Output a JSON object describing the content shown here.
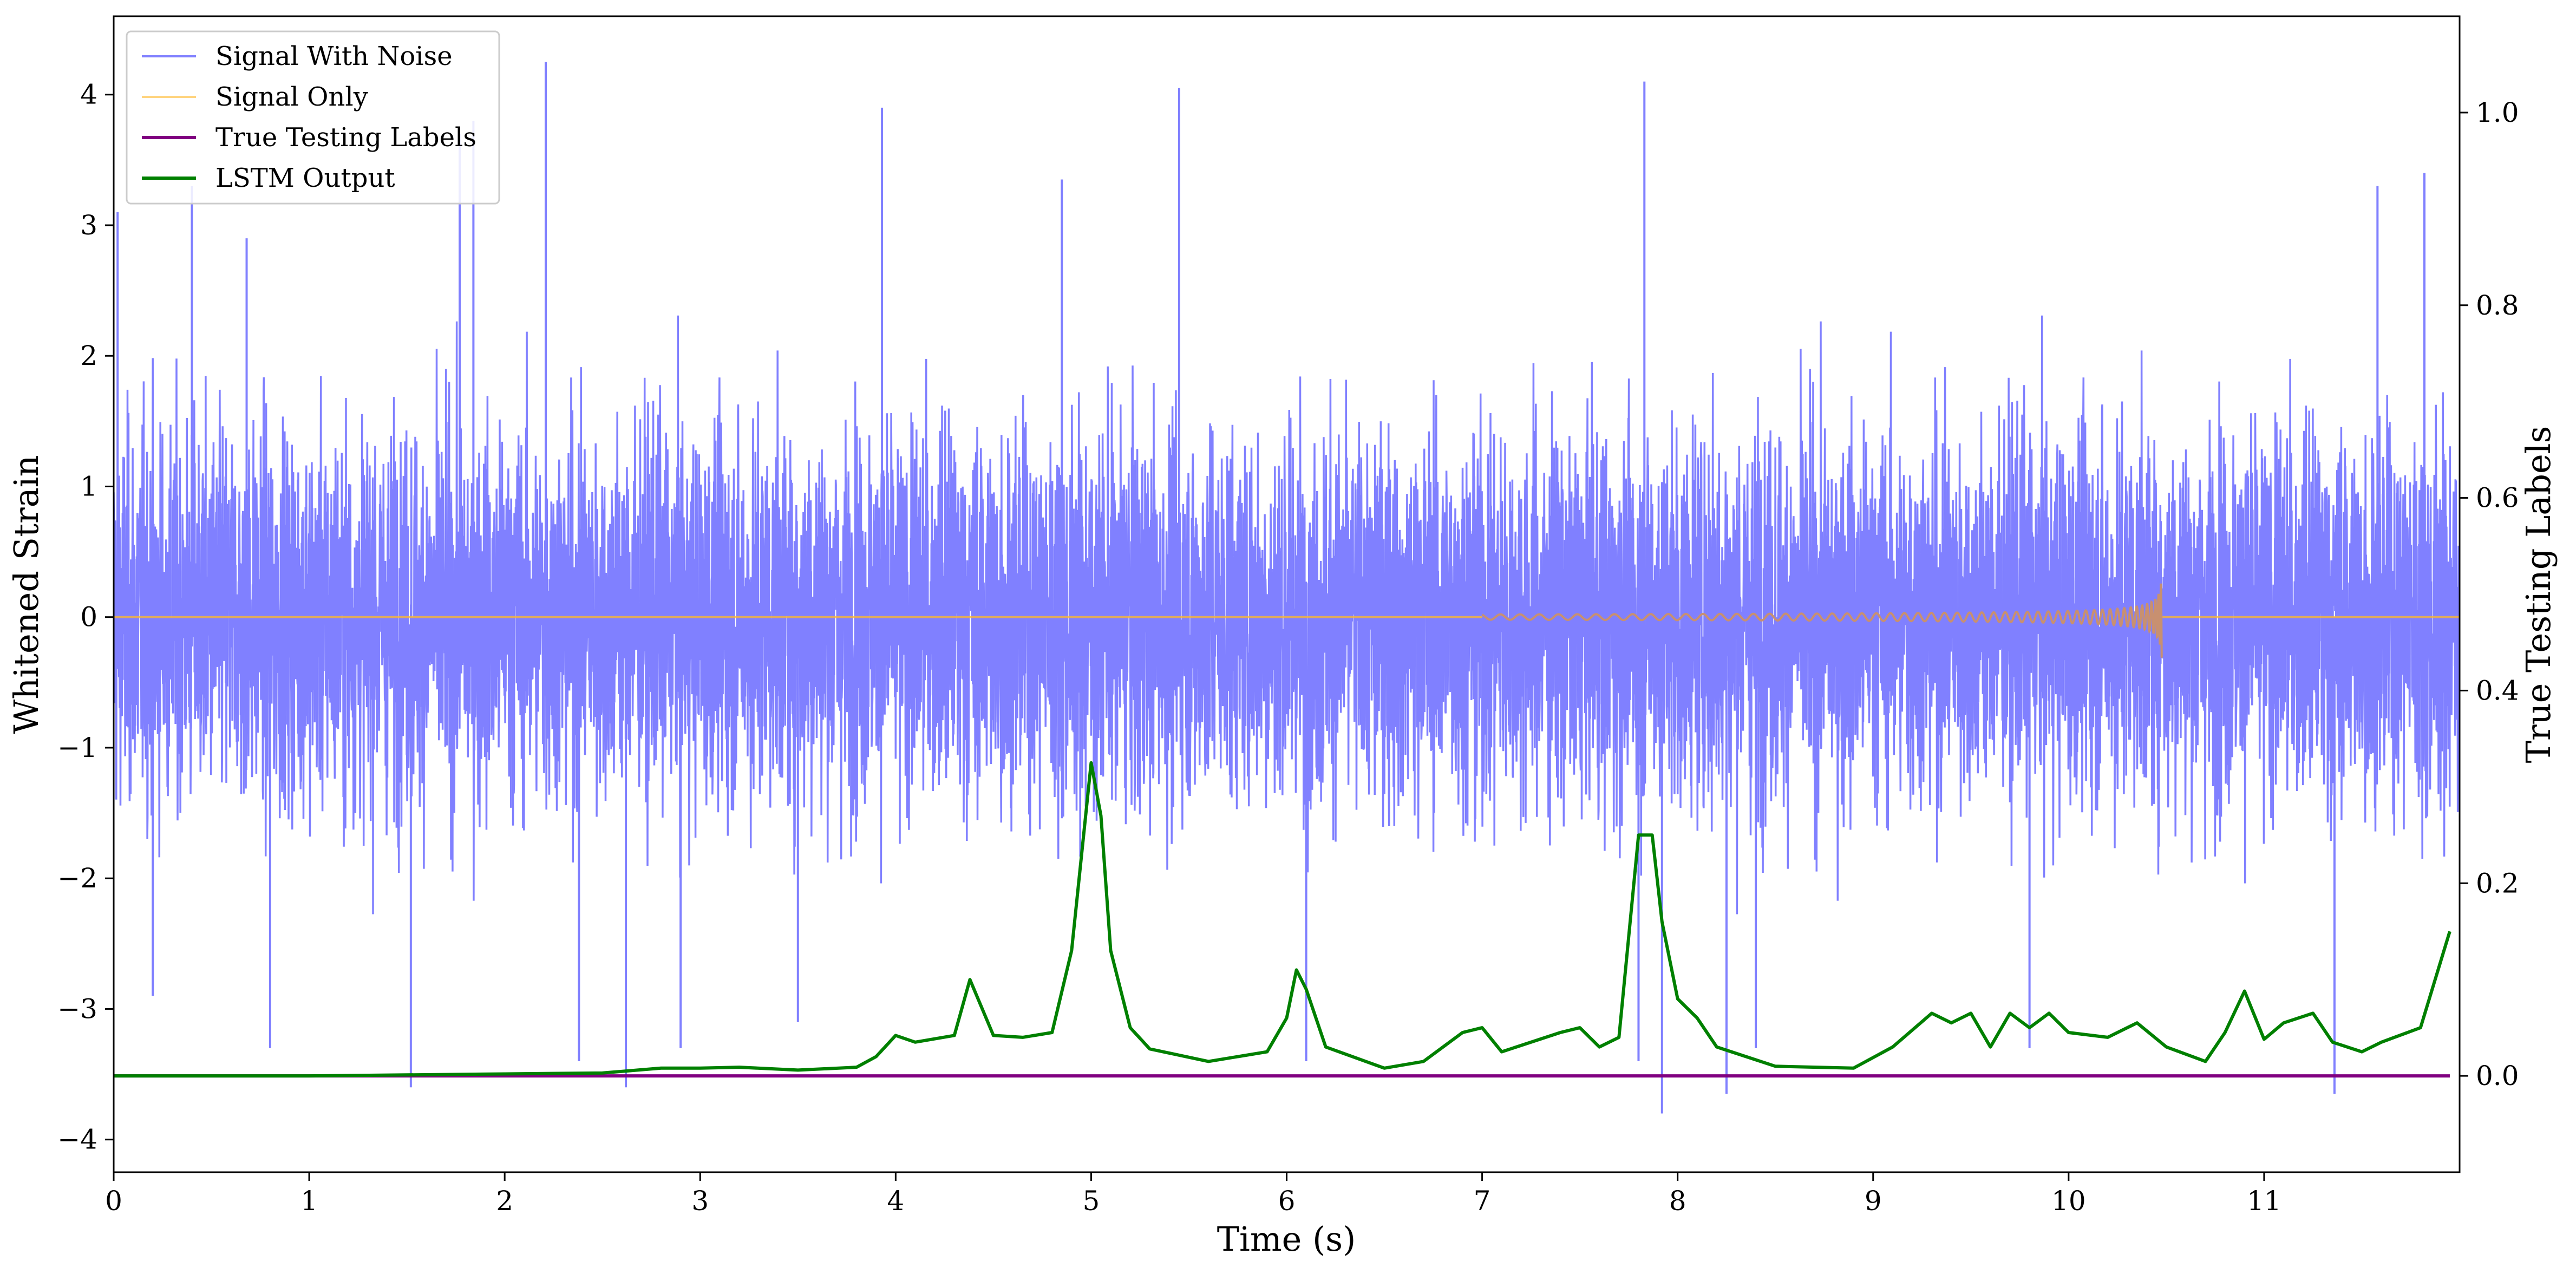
{
  "chart_data": {
    "type": "line",
    "title": "",
    "xlabel": "Time (s)",
    "ylabel": "Whitened Strain",
    "ylabel_right": "True Testing Labels",
    "xlim": [
      0,
      12
    ],
    "ylim": [
      -4.25,
      4.6
    ],
    "ylim_right": [
      -0.1,
      1.1
    ],
    "x_ticks": [
      0,
      1,
      2,
      3,
      4,
      5,
      6,
      7,
      8,
      9,
      10,
      11
    ],
    "x_tick_labels": [
      "0",
      "1",
      "2",
      "3",
      "4",
      "5",
      "6",
      "7",
      "8",
      "9",
      "10",
      "11"
    ],
    "y_ticks": [
      -4,
      -3,
      -2,
      -1,
      0,
      1,
      2,
      3,
      4
    ],
    "y_tick_labels": [
      "−4",
      "−3",
      "−2",
      "−1",
      "0",
      "1",
      "2",
      "3",
      "4"
    ],
    "y_ticks_right": [
      0.0,
      0.2,
      0.4,
      0.6,
      0.8,
      1.0
    ],
    "y_tick_labels_right": [
      "0.0",
      "0.2",
      "0.4",
      "0.6",
      "0.8",
      "1.0"
    ],
    "grid": false,
    "legend_position": "top-left",
    "series": [
      {
        "name": "Signal With Noise",
        "color": "#8080ff",
        "axis": "left",
        "kind": "dense-noise",
        "typical_envelope": [
          -1.8,
          2.5
        ],
        "spikes": [
          {
            "x": 0.02,
            "y": 3.1
          },
          {
            "x": 0.4,
            "y": 3.3
          },
          {
            "x": 0.68,
            "y": 2.9
          },
          {
            "x": 1.77,
            "y": 3.7
          },
          {
            "x": 1.84,
            "y": 3.8
          },
          {
            "x": 2.21,
            "y": 4.25
          },
          {
            "x": 3.93,
            "y": 3.9
          },
          {
            "x": 5.45,
            "y": 4.05
          },
          {
            "x": 7.83,
            "y": 4.1
          },
          {
            "x": 4.85,
            "y": 3.35
          },
          {
            "x": 11.58,
            "y": 3.3
          },
          {
            "x": 11.82,
            "y": 3.4
          },
          {
            "x": 1.52,
            "y": -3.6
          },
          {
            "x": 2.62,
            "y": -3.6
          },
          {
            "x": 2.38,
            "y": -3.4
          },
          {
            "x": 7.92,
            "y": -3.8
          },
          {
            "x": 8.25,
            "y": -3.65
          },
          {
            "x": 11.36,
            "y": -3.65
          },
          {
            "x": 0.2,
            "y": -2.9
          },
          {
            "x": 0.8,
            "y": -3.3
          },
          {
            "x": 2.9,
            "y": -3.3
          },
          {
            "x": 3.5,
            "y": -3.1
          },
          {
            "x": 6.1,
            "y": -3.4
          },
          {
            "x": 7.8,
            "y": -3.4
          },
          {
            "x": 8.4,
            "y": -3.3
          },
          {
            "x": 9.8,
            "y": -3.3
          }
        ]
      },
      {
        "name": "Signal Only",
        "color": "#ffb829",
        "axis": "left",
        "kind": "chirp",
        "chirp_start": 7.0,
        "chirp_end": 10.48,
        "peak_amplitude": 0.35
      },
      {
        "name": "True Testing Labels",
        "color": "#800080",
        "axis": "right",
        "x": [
          0,
          11.95
        ],
        "y": [
          0.0,
          0.0
        ]
      },
      {
        "name": "LSTM Output",
        "color": "#008000",
        "axis": "right",
        "x": [
          0,
          1.0,
          2.0,
          2.5,
          2.8,
          3.0,
          3.2,
          3.5,
          3.8,
          3.9,
          4.0,
          4.1,
          4.3,
          4.38,
          4.5,
          4.65,
          4.8,
          4.9,
          5.0,
          5.05,
          5.1,
          5.2,
          5.3,
          5.6,
          5.9,
          6.0,
          6.05,
          6.1,
          6.2,
          6.5,
          6.7,
          6.9,
          7.0,
          7.1,
          7.4,
          7.5,
          7.6,
          7.7,
          7.8,
          7.87,
          7.92,
          8.0,
          8.1,
          8.2,
          8.5,
          8.9,
          9.1,
          9.3,
          9.4,
          9.5,
          9.6,
          9.7,
          9.8,
          9.9,
          10.0,
          10.2,
          10.35,
          10.5,
          10.7,
          10.8,
          10.9,
          11.0,
          11.1,
          11.25,
          11.35,
          11.5,
          11.6,
          11.8,
          11.95
        ],
        "y": [
          0.0,
          0.0,
          0.002,
          0.003,
          0.008,
          0.008,
          0.009,
          0.006,
          0.009,
          0.02,
          0.042,
          0.035,
          0.042,
          0.1,
          0.042,
          0.04,
          0.045,
          0.13,
          0.325,
          0.27,
          0.13,
          0.05,
          0.028,
          0.015,
          0.025,
          0.06,
          0.11,
          0.09,
          0.03,
          0.008,
          0.015,
          0.045,
          0.05,
          0.025,
          0.045,
          0.05,
          0.03,
          0.04,
          0.25,
          0.25,
          0.16,
          0.08,
          0.06,
          0.03,
          0.01,
          0.008,
          0.03,
          0.065,
          0.055,
          0.065,
          0.03,
          0.065,
          0.05,
          0.065,
          0.045,
          0.04,
          0.055,
          0.03,
          0.015,
          0.045,
          0.088,
          0.038,
          0.055,
          0.065,
          0.035,
          0.025,
          0.035,
          0.05,
          0.15
        ]
      }
    ]
  }
}
